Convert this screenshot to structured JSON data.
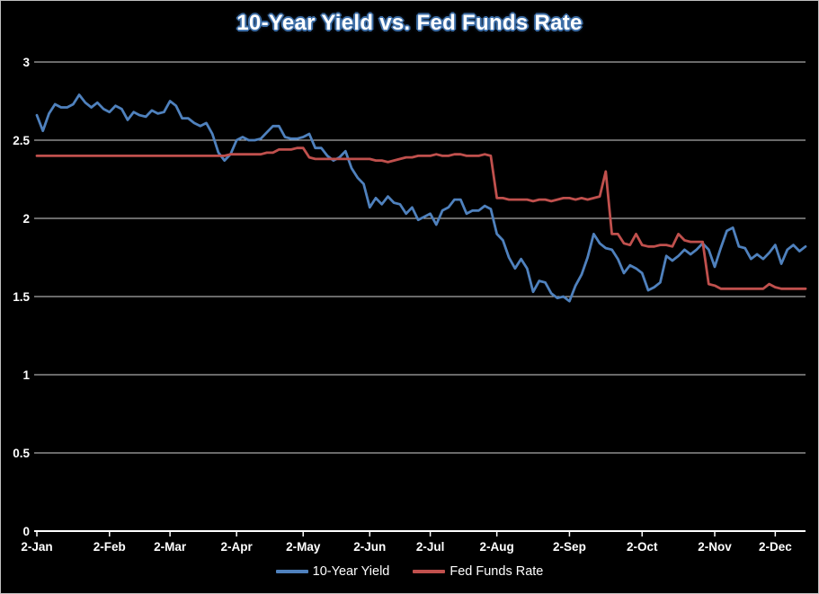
{
  "chart_data": {
    "type": "line",
    "title": "10-Year Yield vs. Fed Funds Rate",
    "xlabel": "",
    "ylabel": "",
    "ylim": [
      0,
      3
    ],
    "y_ticks": [
      0,
      0.5,
      1,
      1.5,
      2,
      2.5,
      3
    ],
    "y_tick_labels": [
      "0",
      "0.5",
      "1",
      "1.5",
      "2",
      "2.5",
      "3"
    ],
    "x_tick_labels": [
      "2-Jan",
      "2-Feb",
      "2-Mar",
      "2-Apr",
      "2-May",
      "2-Jun",
      "2-Jul",
      "2-Aug",
      "2-Sep",
      "2-Oct",
      "2-Nov",
      "2-Dec"
    ],
    "grid": "horizontal",
    "legend_position": "bottom",
    "colors": {
      "background": "#000000",
      "border": "#bfbfbf",
      "gridline": "#d4d4d4",
      "axis": "#ffffff",
      "text": "#ffffff",
      "title_outline": "#3e6fa8"
    },
    "dates": [
      "1/2",
      "1/3",
      "1/4",
      "1/8",
      "1/10",
      "1/14",
      "1/16",
      "1/18",
      "1/22",
      "1/24",
      "1/28",
      "1/30",
      "2/1",
      "2/4",
      "2/6",
      "2/8",
      "2/12",
      "2/14",
      "2/19",
      "2/21",
      "2/25",
      "2/27",
      "3/1",
      "3/5",
      "3/7",
      "3/11",
      "3/13",
      "3/15",
      "3/19",
      "3/21",
      "3/25",
      "3/27",
      "3/29",
      "4/1",
      "4/3",
      "4/5",
      "4/9",
      "4/11",
      "4/15",
      "4/17",
      "4/22",
      "4/24",
      "4/26",
      "4/30",
      "5/1",
      "5/3",
      "5/7",
      "5/9",
      "5/13",
      "5/15",
      "5/17",
      "5/21",
      "5/23",
      "5/28",
      "5/30",
      "6/3",
      "6/5",
      "6/7",
      "6/11",
      "6/13",
      "6/17",
      "6/19",
      "6/21",
      "6/25",
      "6/27",
      "7/1",
      "7/3",
      "7/8",
      "7/10",
      "7/12",
      "7/16",
      "7/18",
      "7/22",
      "7/24",
      "7/26",
      "7/30",
      "8/1",
      "8/2",
      "8/5",
      "8/7",
      "8/9",
      "8/13",
      "8/15",
      "8/19",
      "8/21",
      "8/23",
      "8/27",
      "8/29",
      "9/3",
      "9/5",
      "9/9",
      "9/11",
      "9/13",
      "9/16",
      "9/17",
      "9/18",
      "9/20",
      "9/24",
      "9/26",
      "9/30",
      "10/1",
      "10/3",
      "10/7",
      "10/9",
      "10/11",
      "10/15",
      "10/17",
      "10/21",
      "10/23",
      "10/25",
      "10/29",
      "10/31",
      "11/1",
      "11/5",
      "11/7",
      "11/12",
      "11/14",
      "11/18",
      "11/20",
      "11/22",
      "11/26",
      "11/29",
      "12/2",
      "12/3",
      "12/5",
      "12/9",
      "12/11",
      "12/13"
    ],
    "series": [
      {
        "name": "10-Year Yield",
        "color": "#4F81BD",
        "values": [
          2.66,
          2.56,
          2.67,
          2.73,
          2.71,
          2.71,
          2.73,
          2.79,
          2.74,
          2.71,
          2.74,
          2.7,
          2.68,
          2.72,
          2.7,
          2.63,
          2.68,
          2.66,
          2.65,
          2.69,
          2.67,
          2.68,
          2.75,
          2.72,
          2.64,
          2.64,
          2.61,
          2.59,
          2.61,
          2.54,
          2.42,
          2.37,
          2.41,
          2.5,
          2.52,
          2.5,
          2.5,
          2.51,
          2.55,
          2.59,
          2.59,
          2.52,
          2.51,
          2.51,
          2.52,
          2.54,
          2.45,
          2.45,
          2.4,
          2.37,
          2.39,
          2.43,
          2.32,
          2.26,
          2.22,
          2.07,
          2.13,
          2.09,
          2.14,
          2.1,
          2.09,
          2.03,
          2.07,
          1.99,
          2.01,
          2.03,
          1.96,
          2.05,
          2.07,
          2.12,
          2.12,
          2.03,
          2.05,
          2.05,
          2.08,
          2.06,
          1.9,
          1.86,
          1.75,
          1.68,
          1.74,
          1.68,
          1.53,
          1.6,
          1.59,
          1.52,
          1.49,
          1.5,
          1.47,
          1.57,
          1.64,
          1.75,
          1.9,
          1.84,
          1.81,
          1.8,
          1.74,
          1.65,
          1.7,
          1.68,
          1.65,
          1.54,
          1.56,
          1.59,
          1.76,
          1.73,
          1.76,
          1.8,
          1.77,
          1.8,
          1.84,
          1.8,
          1.69,
          1.81,
          1.92,
          1.94,
          1.82,
          1.81,
          1.74,
          1.77,
          1.74,
          1.78,
          1.83,
          1.71,
          1.8,
          1.83,
          1.79,
          1.82
        ]
      },
      {
        "name": "Fed Funds Rate",
        "color": "#C0504D",
        "values": [
          2.4,
          2.4,
          2.4,
          2.4,
          2.4,
          2.4,
          2.4,
          2.4,
          2.4,
          2.4,
          2.4,
          2.4,
          2.4,
          2.4,
          2.4,
          2.4,
          2.4,
          2.4,
          2.4,
          2.4,
          2.4,
          2.4,
          2.4,
          2.4,
          2.4,
          2.4,
          2.4,
          2.4,
          2.4,
          2.4,
          2.4,
          2.4,
          2.41,
          2.41,
          2.41,
          2.41,
          2.41,
          2.41,
          2.42,
          2.42,
          2.44,
          2.44,
          2.44,
          2.45,
          2.45,
          2.39,
          2.38,
          2.38,
          2.38,
          2.38,
          2.38,
          2.38,
          2.38,
          2.38,
          2.38,
          2.38,
          2.37,
          2.37,
          2.36,
          2.37,
          2.38,
          2.39,
          2.39,
          2.4,
          2.4,
          2.4,
          2.41,
          2.4,
          2.4,
          2.41,
          2.41,
          2.4,
          2.4,
          2.4,
          2.41,
          2.4,
          2.13,
          2.13,
          2.12,
          2.12,
          2.12,
          2.12,
          2.11,
          2.12,
          2.12,
          2.11,
          2.12,
          2.13,
          2.13,
          2.12,
          2.13,
          2.12,
          2.13,
          2.14,
          2.3,
          1.9,
          1.9,
          1.84,
          1.83,
          1.9,
          1.83,
          1.82,
          1.82,
          1.83,
          1.83,
          1.82,
          1.9,
          1.86,
          1.85,
          1.85,
          1.85,
          1.58,
          1.57,
          1.55,
          1.55,
          1.55,
          1.55,
          1.55,
          1.55,
          1.55,
          1.55,
          1.58,
          1.56,
          1.55,
          1.55,
          1.55,
          1.55,
          1.55
        ]
      }
    ]
  }
}
